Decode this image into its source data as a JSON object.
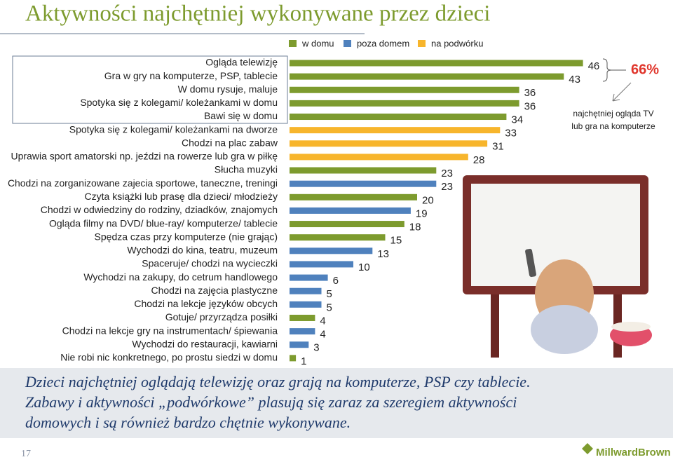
{
  "chart_data": {
    "type": "bar",
    "title": "Aktywności najchętniej wykonywane przez dzieci",
    "categories": [
      "Ogląda telewizję",
      "Gra w gry na komputerze, PSP, tablecie",
      "W domu rysuje, maluje",
      "Spotyka się z kolegami/ koleżankami w domu",
      "Bawi się w domu",
      "Spotyka się z kolegami/ koleżankami na dworze",
      "Chodzi na plac zabaw",
      "Uprawia sport amatorski np. jeździ na rowerze lub gra w piłkę",
      "Słucha muzyki",
      "Chodzi na zorganizowane zajecia sportowe, taneczne, treningi",
      "Czyta książki lub prasę dla dzieci/ młodzieży",
      "Chodzi w odwiedziny do rodziny, dziadków, znajomych",
      "Ogląda filmy na DVD/ blue-ray/ komputerze/ tablecie",
      "Spędza czas przy komputerze (nie grając)",
      "Wychodzi do kina, teatru, muzeum",
      "Spaceruje/ chodzi na wycieczki",
      "Wychodzi na zakupy, do cetrum handlowego",
      "Chodzi na zajęcia plastyczne",
      "Chodzi na lekcje języków obcych",
      "Gotuje/ przyrządza posiłki",
      "Chodzi na lekcje gry na instrumentach/ śpiewania",
      "Wychodzi do restauracji, kawiarni",
      "Nie robi nic konkretnego, po prostu siedzi w domu"
    ],
    "series": [
      {
        "name": "w domu",
        "color": "#7d9b2e",
        "values": [
          46,
          43,
          36,
          36,
          34,
          null,
          null,
          null,
          23,
          null,
          20,
          null,
          18,
          15,
          null,
          null,
          null,
          null,
          null,
          4,
          null,
          null,
          1
        ]
      },
      {
        "name": "poza domem",
        "color": "#4f81bd",
        "values": [
          null,
          null,
          null,
          null,
          null,
          null,
          null,
          null,
          null,
          23,
          null,
          19,
          null,
          null,
          13,
          10,
          6,
          5,
          5,
          null,
          4,
          3,
          null
        ]
      },
      {
        "name": "na podwórku",
        "color": "#f7b52c",
        "values": [
          null,
          null,
          null,
          null,
          null,
          33,
          31,
          28,
          null,
          null,
          null,
          null,
          null,
          null,
          null,
          null,
          null,
          null,
          null,
          null,
          null,
          null,
          null
        ]
      }
    ],
    "annotation": "66%",
    "note_lines": [
      "najchętniej ogląda TV",
      "lub gra na komputerze"
    ]
  },
  "slide": {
    "footer_lines": [
      "Dzieci najchętniej oglądają telewizję oraz grają na komputerze, PSP czy tablecie.",
      "Zabawy i aktywności „podwórkowe” plasują się zaraz za szeregiem aktywności",
      "domowych i są również bardzo chętnie wykonywane."
    ],
    "page_number": "17",
    "logo": "MillwardBrown"
  }
}
